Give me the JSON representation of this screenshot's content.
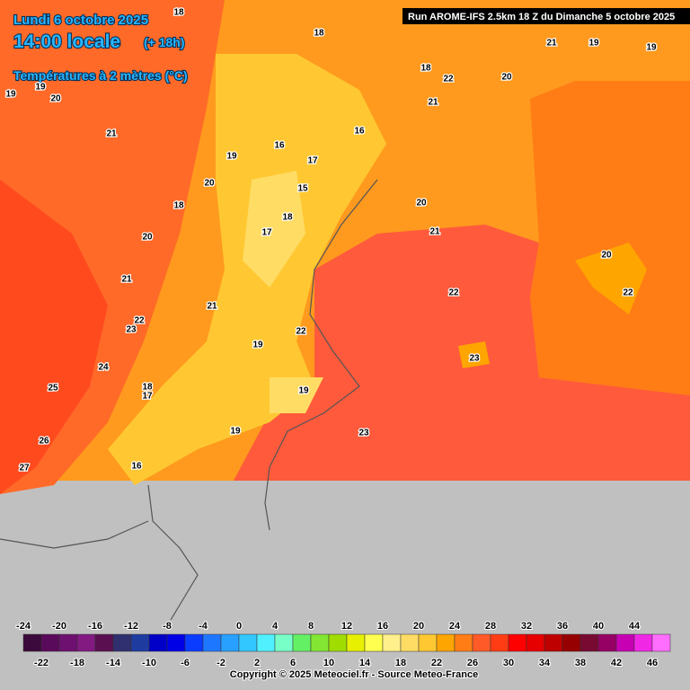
{
  "header": {
    "date": "Lundi 6 octobre 2025",
    "time": "14:00 locale",
    "lead": "(+ 18h)",
    "variable": "Températures à 2 mètres (°C)",
    "run": "Run AROME-IFS 2.5km 18 Z du Dimanche 5 octobre 2025"
  },
  "map_labels": [
    "18",
    "18",
    "21",
    "19",
    "19",
    "18",
    "22",
    "20",
    "19",
    "19",
    "20",
    "21",
    "21",
    "16",
    "16",
    "19",
    "17",
    "20",
    "15",
    "18",
    "18",
    "20",
    "17",
    "21",
    "20",
    "20",
    "21",
    "22",
    "22",
    "21",
    "22",
    "23",
    "22",
    "19",
    "23",
    "24",
    "25",
    "18",
    "17",
    "19",
    "23",
    "19",
    "26",
    "27",
    "16"
  ],
  "legend": {
    "ticks_top": [
      "-24",
      "-20",
      "-16",
      "-12",
      "-8",
      "-4",
      "0",
      "4",
      "8",
      "12",
      "16",
      "20",
      "24",
      "28",
      "32",
      "36",
      "40",
      "44"
    ],
    "ticks_bottom": [
      "-22",
      "-18",
      "-14",
      "-10",
      "-6",
      "-2",
      "2",
      "6",
      "10",
      "14",
      "18",
      "22",
      "26",
      "30",
      "34",
      "38",
      "42",
      "46"
    ],
    "colors": [
      "#3c0a3c",
      "#5a0a5a",
      "#6e1070",
      "#821a82",
      "#5a1050",
      "#303070",
      "#1e3ca0",
      "#0000c8",
      "#0000e6",
      "#0a3cff",
      "#1e78ff",
      "#28a0ff",
      "#32c8ff",
      "#50f0ff",
      "#78ffc8",
      "#64f064",
      "#82e632",
      "#a0dc00",
      "#e6f000",
      "#ffff50",
      "#fff08c",
      "#ffdc64",
      "#ffc832",
      "#ffa500",
      "#ff7d14",
      "#ff5a28",
      "#ff3c14",
      "#ff0000",
      "#e60000",
      "#be0000",
      "#960000",
      "#780a32",
      "#960064",
      "#c800b4",
      "#f028e6",
      "#ff6eff"
    ]
  },
  "footer": "Copyright © 2025 Meteociel.fr - Source Meteo-France"
}
